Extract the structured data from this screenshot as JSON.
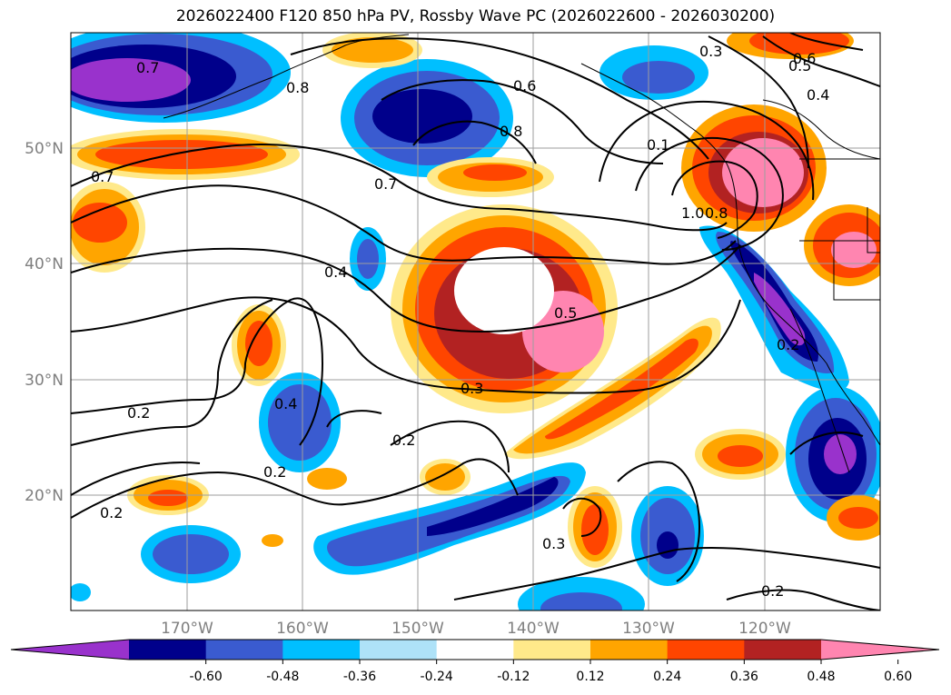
{
  "title": "2026022400 F120 850 hPa PV, Rossby Wave PC (2026022600 - 2026030200)",
  "map": {
    "lon_labels": [
      "170°W",
      "160°W",
      "150°W",
      "140°W",
      "130°W",
      "120°W"
    ],
    "lat_labels": [
      "50°N",
      "40°N",
      "30°N",
      "20°N"
    ]
  },
  "contour_labels": [
    "0.7",
    "0.8",
    "0.6",
    "0.8",
    "0.7",
    "0.7",
    "0.4",
    "0.4",
    "0.2",
    "0.2",
    "0.2",
    "0.2",
    "0.3",
    "0.5",
    "0.3",
    "0.6",
    "0.5",
    "0.4",
    "0.3",
    "0.1",
    "1.0",
    "0.8",
    "0.2",
    "0.2"
  ],
  "colorbar": {
    "ticks": [
      "-0.60",
      "-0.48",
      "-0.36",
      "-0.24",
      "-0.12",
      "0.12",
      "0.24",
      "0.36",
      "0.48",
      "0.60"
    ],
    "colors": [
      "#9932cc",
      "#00008b",
      "#3a5bd0",
      "#00bfff",
      "#aee2f8",
      "#ffffff",
      "#ffe98a",
      "#ffa500",
      "#ff4500",
      "#b22222",
      "#ff85b0"
    ]
  }
}
